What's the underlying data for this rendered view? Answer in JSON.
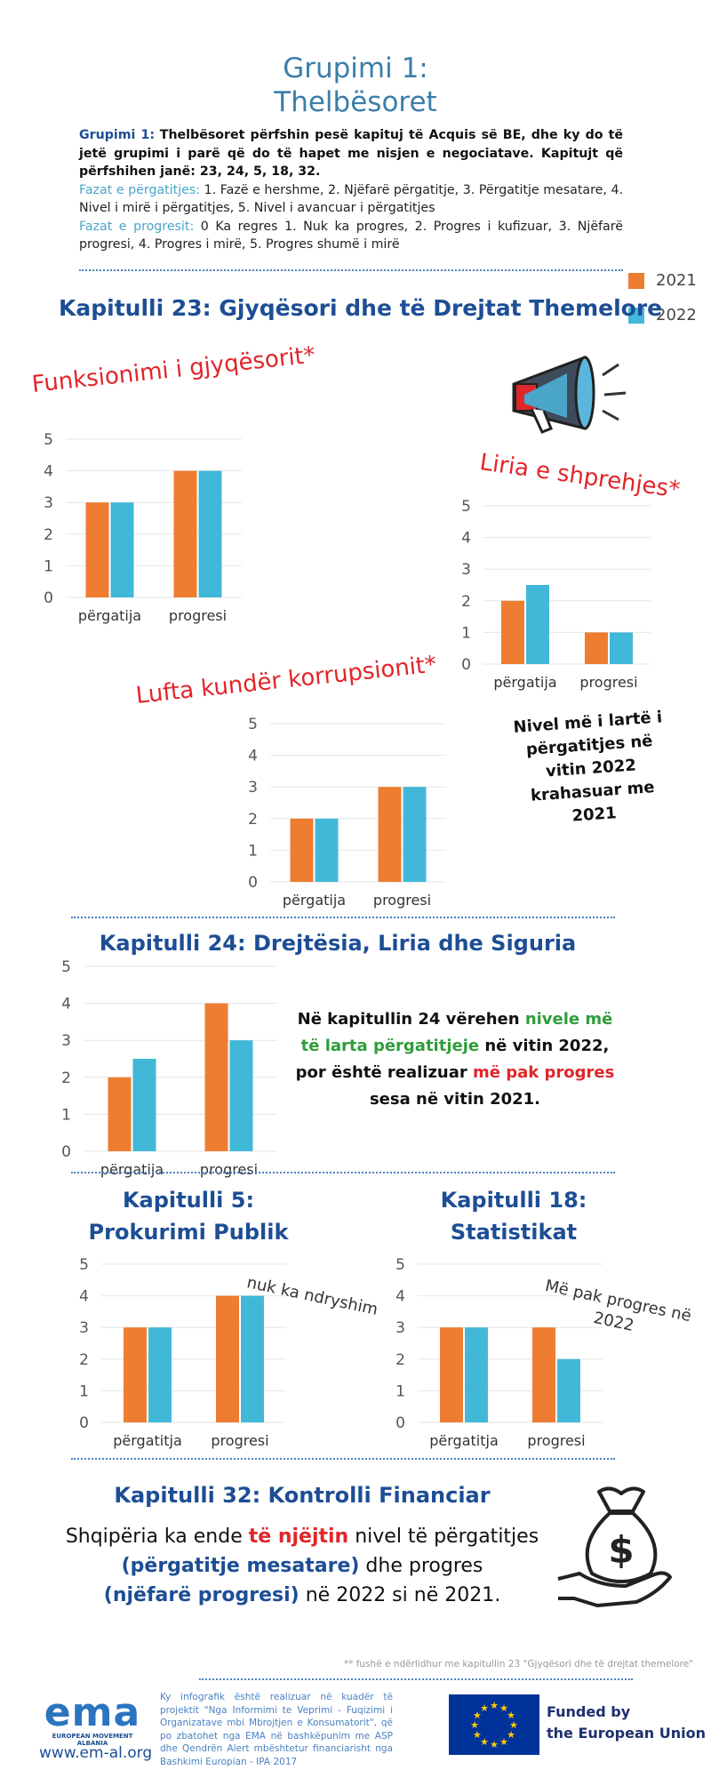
{
  "title": {
    "line1": "Grupimi 1:",
    "line2": "Thelbësoret"
  },
  "intro": {
    "p1_label": "Grupimi 1:",
    "p1_text": "Thelbësoret përfshin pesë kapituj të Acquis së BE, dhe ky do të jetë grupimi i parë që do të hapet me nisjen e negociatave. Kapitujt që përfshihen janë: 23, 24, 5, 18, 32.",
    "p2_label": "Fazat e përgatitjes:",
    "p2_text": "1. Fazë e hershme, 2. Njëfarë përgatitje, 3. Përgatitje mesatare, 4. Nivel i mirë i përgatitjes, 5. Nivel i avancuar i përgatitjes",
    "p3_label": "Fazat e progresit:",
    "p3_text": "0 Ka regres 1. Nuk ka progres, 2. Progres i kufizuar, 3. Njëfarë progresi, 4. Progres i mirë, 5. Progres shumë i mirë"
  },
  "legend": [
    {
      "label": "2021",
      "color": "#ee7d31"
    },
    {
      "label": "2022",
      "color": "#42b8d8"
    }
  ],
  "ch23": {
    "title": "Kapitulli 23: Gjyqësori dhe të Drejtat Themelore",
    "sub1": "Funksionimi i gjyqësorit*",
    "sub2": "Liria e shprehjes*",
    "sub3": "Lufta kundër korrupsionit*",
    "note": "Nivel më i lartë i përgatitjes në vitin 2022 krahasuar me 2021"
  },
  "ch24": {
    "title": "Kapitulli 24: Drejtësia, Liria dhe Siguria",
    "callout_a": "Në kapitullin 24 vërehen ",
    "callout_b": "nivele më të larta përgatitjeje",
    "callout_c": " në vitin 2022, por është realizuar ",
    "callout_d": "më pak progres",
    "callout_e": " sesa në vitin 2021."
  },
  "ch5": {
    "title_l1": "Kapitulli 5:",
    "title_l2": "Prokurimi Publik",
    "note": "nuk ka ndryshim"
  },
  "ch18": {
    "title_l1": "Kapitulli 18:",
    "title_l2": "Statistikat",
    "note_l1": "Më pak progres në",
    "note_l2": "2022"
  },
  "ch32": {
    "title": "Kapitulli 32: Kontrolli Financiar",
    "t1": "Shqipëria ka ende ",
    "t2": "të njëjtin",
    "t3": " nivel të përgatitjes",
    "t4": "(përgatitje mesatare)",
    "t5": " dhe progres",
    "t6": "(njëfarë progresi)",
    "t7": " në 2022 si në 2021."
  },
  "footer": {
    "footnote": "** fushë e ndërlidhur me kapitullin 23 \"Gjyqësori dhe të drejtat themelore\"",
    "body": "Ky infografik është realizuar në kuadër të projektit \"Nga Informimi te Veprimi - Fuqizimi i Organizatave mbi Mbrojtjen e Konsumatorit\", që po zbatohet nga EMA në bashkëpunim me ASP dhe Qendrën Alert mbështetur financiarisht nga Bashkimi Europian - IPA 2017",
    "logo_text": "ema",
    "logo_sub": "EUROPEAN MOVEMENT ALBANIA",
    "website": "www.em-al.org",
    "funded_l1": "Funded by",
    "funded_l2": "the European Union"
  },
  "chart_data": [
    {
      "id": "funksionimi-gjyqesorit",
      "type": "bar",
      "title": "Funksionimi i gjyqësorit*",
      "categories": [
        "përgatija",
        "progresi"
      ],
      "series": [
        {
          "name": "2021",
          "values": [
            3,
            4
          ]
        },
        {
          "name": "2022",
          "values": [
            3,
            4
          ]
        }
      ],
      "ylim": [
        0,
        5
      ]
    },
    {
      "id": "liria-shprehjes",
      "type": "bar",
      "title": "Liria e shprehjes*",
      "categories": [
        "përgatija",
        "progresi"
      ],
      "series": [
        {
          "name": "2021",
          "values": [
            2,
            1
          ]
        },
        {
          "name": "2022",
          "values": [
            2.5,
            1
          ]
        }
      ],
      "ylim": [
        0,
        5
      ]
    },
    {
      "id": "lufta-korrupsionit",
      "type": "bar",
      "title": "Lufta kundër korrupsionit*",
      "categories": [
        "përgatija",
        "progresi"
      ],
      "series": [
        {
          "name": "2021",
          "values": [
            2,
            3
          ]
        },
        {
          "name": "2022",
          "values": [
            2,
            3
          ]
        }
      ],
      "ylim": [
        0,
        5
      ]
    },
    {
      "id": "kapitulli-24",
      "type": "bar",
      "title": "Kapitulli 24: Drejtësia, Liria dhe Siguria",
      "categories": [
        "përgatija",
        "progresi"
      ],
      "series": [
        {
          "name": "2021",
          "values": [
            2,
            4
          ]
        },
        {
          "name": "2022",
          "values": [
            2.5,
            3
          ]
        }
      ],
      "ylim": [
        0,
        5
      ]
    },
    {
      "id": "kapitulli-5",
      "type": "bar",
      "title": "Kapitulli 5: Prokurimi Publik",
      "categories": [
        "përgatitja",
        "progresi"
      ],
      "series": [
        {
          "name": "2021",
          "values": [
            3,
            4
          ]
        },
        {
          "name": "2022",
          "values": [
            3,
            4
          ]
        }
      ],
      "ylim": [
        0,
        5
      ]
    },
    {
      "id": "kapitulli-18",
      "type": "bar",
      "title": "Kapitulli 18: Statistikat",
      "categories": [
        "përgatitja",
        "progresi"
      ],
      "series": [
        {
          "name": "2021",
          "values": [
            3,
            3
          ]
        },
        {
          "name": "2022",
          "values": [
            3,
            2
          ]
        }
      ],
      "ylim": [
        0,
        5
      ]
    }
  ]
}
